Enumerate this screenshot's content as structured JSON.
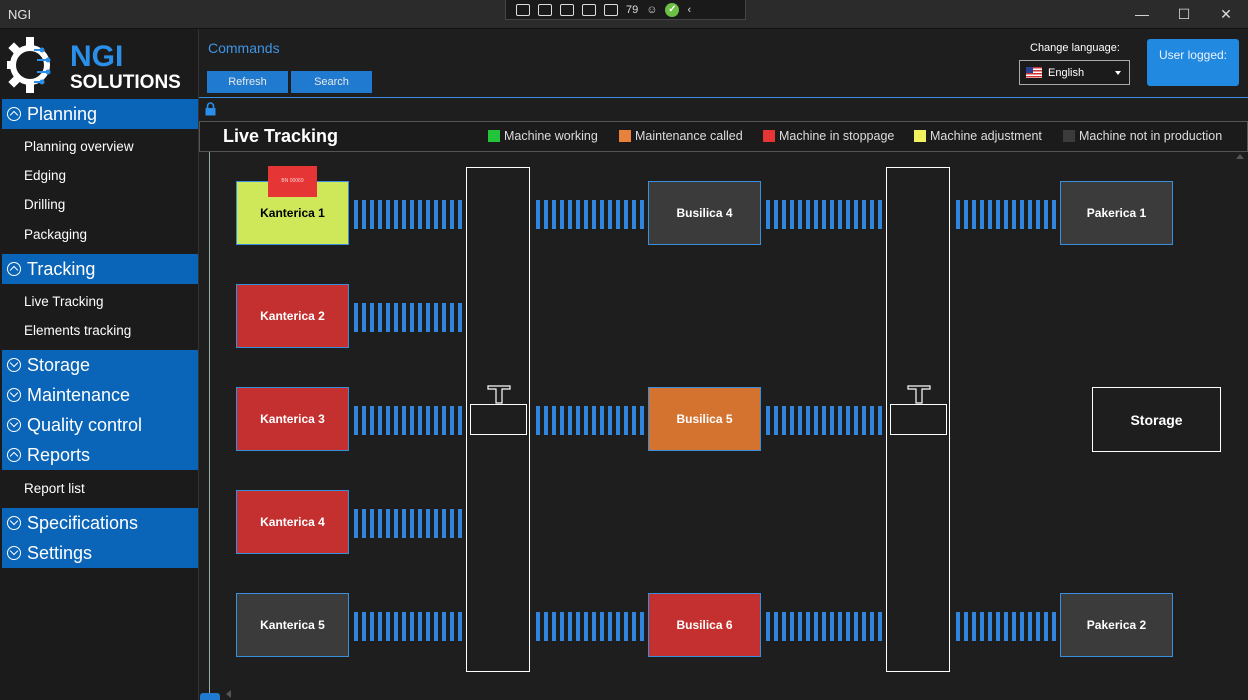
{
  "window": {
    "title": "NGI",
    "debug_counter": "79"
  },
  "sidebar": {
    "logo": {
      "line1": "NGI",
      "line2": "SOLUTIONS"
    },
    "sections": [
      {
        "label": "Planning",
        "expanded": true,
        "items": [
          "Planning overview",
          "Edging",
          "Drilling",
          "Packaging"
        ]
      },
      {
        "label": "Tracking",
        "expanded": true,
        "items": [
          "Live Tracking",
          "Elements tracking"
        ]
      },
      {
        "label": "Storage",
        "expanded": false,
        "items": []
      },
      {
        "label": "Maintenance",
        "expanded": false,
        "items": []
      },
      {
        "label": "Quality control",
        "expanded": false,
        "items": []
      },
      {
        "label": "Reports",
        "expanded": true,
        "items": [
          "Report list"
        ]
      },
      {
        "label": "Specifications",
        "expanded": false,
        "items": []
      },
      {
        "label": "Settings",
        "expanded": false,
        "items": []
      }
    ]
  },
  "commands": {
    "title": "Commands",
    "refresh_label": "Refresh",
    "search_label": "Search"
  },
  "language": {
    "label": "Change language:",
    "selected": "English"
  },
  "user": {
    "label": "User logged:"
  },
  "tracking": {
    "title": "Live Tracking",
    "legend": [
      {
        "label": "Machine working",
        "color": "#22c43a"
      },
      {
        "label": "Maintenance called",
        "color": "#e8823a"
      },
      {
        "label": "Machine in stoppage",
        "color": "#e53535"
      },
      {
        "label": "Machine adjustment",
        "color": "#f2f25c"
      },
      {
        "label": "Machine not in production",
        "color": "#3b3b3b"
      }
    ],
    "machines": [
      {
        "name": "Kanterica 1",
        "status": "Machine adjustment",
        "color": "#cfe85a"
      },
      {
        "name": "Kanterica 2",
        "status": "Machine in stoppage",
        "color": "#c43030"
      },
      {
        "name": "Kanterica 3",
        "status": "Machine in stoppage",
        "color": "#c43030"
      },
      {
        "name": "Kanterica 4",
        "status": "Machine in stoppage",
        "color": "#c43030"
      },
      {
        "name": "Kanterica 5",
        "status": "Machine not in production",
        "color": "#3b3b3b"
      },
      {
        "name": "Busilica 4",
        "status": "Machine not in production",
        "color": "#3b3b3b"
      },
      {
        "name": "Busilica 5",
        "status": "Maintenance called",
        "color": "#d4732f"
      },
      {
        "name": "Busilica 6",
        "status": "Machine in stoppage",
        "color": "#c43030"
      },
      {
        "name": "Pakerica 1",
        "status": "Machine not in production",
        "color": "#3b3b3b"
      },
      {
        "name": "Pakerica 2",
        "status": "Machine not in production",
        "color": "#3b3b3b"
      }
    ],
    "tag_text": "BN 00069",
    "storage_label": "Storage"
  }
}
